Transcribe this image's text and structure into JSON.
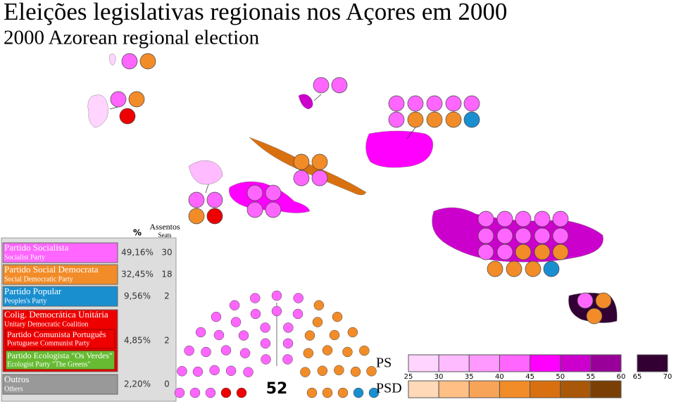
{
  "header": {
    "title": "Eleições legislativas regionais nos Açores em 2000",
    "subtitle": "2000 Azorean regional election"
  },
  "table": {
    "columns": {
      "percent": "%",
      "seats": "Assentos",
      "seats_en": "Seats"
    },
    "parties": [
      {
        "name": "Partido Socialista",
        "name_en": "Socialist Party",
        "percent": "49,16%",
        "seats": 30,
        "color": "#ff66ff"
      },
      {
        "name": "Partido Social Democrata",
        "name_en": "Social Democratic Party",
        "percent": "32,45%",
        "seats": 18,
        "color": "#f28c28"
      },
      {
        "name": "Partido Popular",
        "name_en": "Peoples's Party",
        "percent": "9,56%",
        "seats": 2,
        "color": "#1a8fd0"
      },
      {
        "name": "Colig. Democrática Unitária",
        "name_en": "Unitary Democratic Coalition",
        "percent": "4,85%",
        "seats": 2,
        "color": "#ee0000",
        "members": [
          {
            "name": "Partido Comunista Português",
            "name_en": "Portuguese Communist Party",
            "color": "#ee0000"
          },
          {
            "name": "Partido Ecologista \"Os Verdes\"",
            "name_en": "Ecologist Party \"The Greens\"",
            "color": "#66bb33"
          }
        ]
      },
      {
        "name": "Outros",
        "name_en": "Others",
        "percent": "2,20%",
        "seats": 0,
        "color": "#999999"
      }
    ]
  },
  "parliament": {
    "total": 52
  },
  "scale": {
    "ps_label": "PS",
    "psd_label": "PSD",
    "ps_colors": [
      "#ffd5ff",
      "#ffbbff",
      "#ff99ff",
      "#ff66ff",
      "#ff00ff",
      "#cc00cc",
      "#990099"
    ],
    "ps_dark": "#330033",
    "psd_colors": [
      "#ffd9b8",
      "#ffbf85",
      "#f8a458",
      "#f28c28",
      "#d97010",
      "#a85808",
      "#7a3f05"
    ],
    "ticks": [
      25,
      30,
      35,
      40,
      45,
      50,
      55,
      60,
      65,
      70
    ]
  }
}
